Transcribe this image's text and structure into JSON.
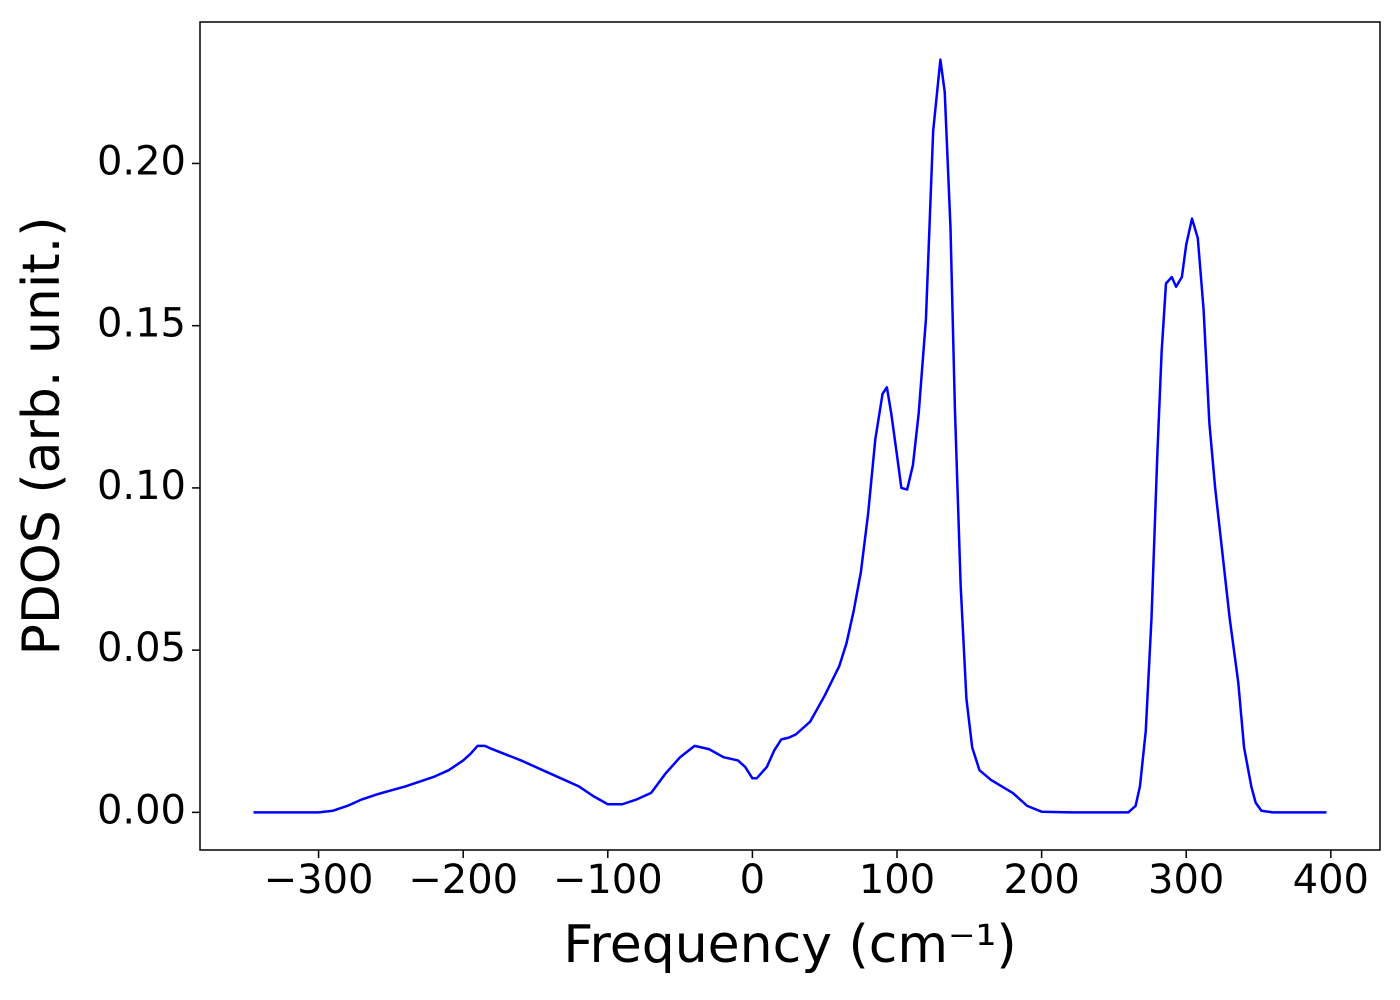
{
  "chart_data": {
    "type": "line",
    "xlabel": "Frequency (cm⁻¹)",
    "ylabel": "PDOS (arb. unit.)",
    "x": [
      -345,
      -300,
      -290,
      -280,
      -270,
      -260,
      -240,
      -220,
      -210,
      -200,
      -195,
      -190,
      -185,
      -180,
      -160,
      -140,
      -120,
      -110,
      -100,
      -90,
      -80,
      -70,
      -60,
      -50,
      -40,
      -30,
      -20,
      -10,
      -5,
      0,
      3,
      10,
      15,
      20,
      25,
      30,
      40,
      50,
      60,
      65,
      70,
      75,
      80,
      85,
      90,
      93,
      96,
      100,
      103,
      107,
      111,
      115,
      120,
      125,
      130,
      133,
      137,
      140,
      144,
      148,
      152,
      157,
      165,
      180,
      190,
      200,
      220,
      260,
      265,
      268,
      272,
      276,
      280,
      283,
      286,
      290,
      293,
      297,
      300,
      304,
      308,
      312,
      316,
      320,
      325,
      330,
      336,
      340,
      345,
      348,
      352,
      360,
      397
    ],
    "series": [
      {
        "name": "PDOS",
        "color": "#0000ff",
        "values": [
          0,
          0,
          0.0005,
          0.002,
          0.004,
          0.0055,
          0.008,
          0.011,
          0.013,
          0.016,
          0.018,
          0.0205,
          0.0205,
          0.0195,
          0.016,
          0.012,
          0.008,
          0.005,
          0.0025,
          0.0025,
          0.004,
          0.006,
          0.012,
          0.017,
          0.0205,
          0.0195,
          0.017,
          0.016,
          0.014,
          0.0105,
          0.0105,
          0.014,
          0.019,
          0.0225,
          0.023,
          0.024,
          0.028,
          0.036,
          0.045,
          0.052,
          0.062,
          0.074,
          0.092,
          0.115,
          0.129,
          0.131,
          0.123,
          0.11,
          0.1,
          0.0995,
          0.107,
          0.123,
          0.152,
          0.21,
          0.232,
          0.222,
          0.18,
          0.125,
          0.07,
          0.035,
          0.02,
          0.013,
          0.01,
          0.006,
          0.002,
          0.0002,
          0,
          0,
          0.002,
          0.008,
          0.025,
          0.06,
          0.11,
          0.142,
          0.163,
          0.165,
          0.162,
          0.165,
          0.175,
          0.183,
          0.177,
          0.155,
          0.12,
          0.1,
          0.08,
          0.06,
          0.04,
          0.02,
          0.008,
          0.003,
          0.0005,
          0,
          0
        ]
      }
    ],
    "xlim": [
      -382,
      434
    ],
    "ylim": [
      -0.0116,
      0.2436
    ],
    "xticks": [
      {
        "value": -300,
        "label": "−300"
      },
      {
        "value": -200,
        "label": "−200"
      },
      {
        "value": -100,
        "label": "−100"
      },
      0,
      100,
      200,
      300,
      400
    ],
    "yticks": [
      {
        "value": 0,
        "label": "0.00"
      },
      {
        "value": 0.05,
        "label": "0.05"
      },
      {
        "value": 0.1,
        "label": "0.10"
      },
      {
        "value": 0.15,
        "label": "0.15"
      },
      {
        "value": 0.2,
        "label": "0.20"
      }
    ],
    "grid": false
  }
}
